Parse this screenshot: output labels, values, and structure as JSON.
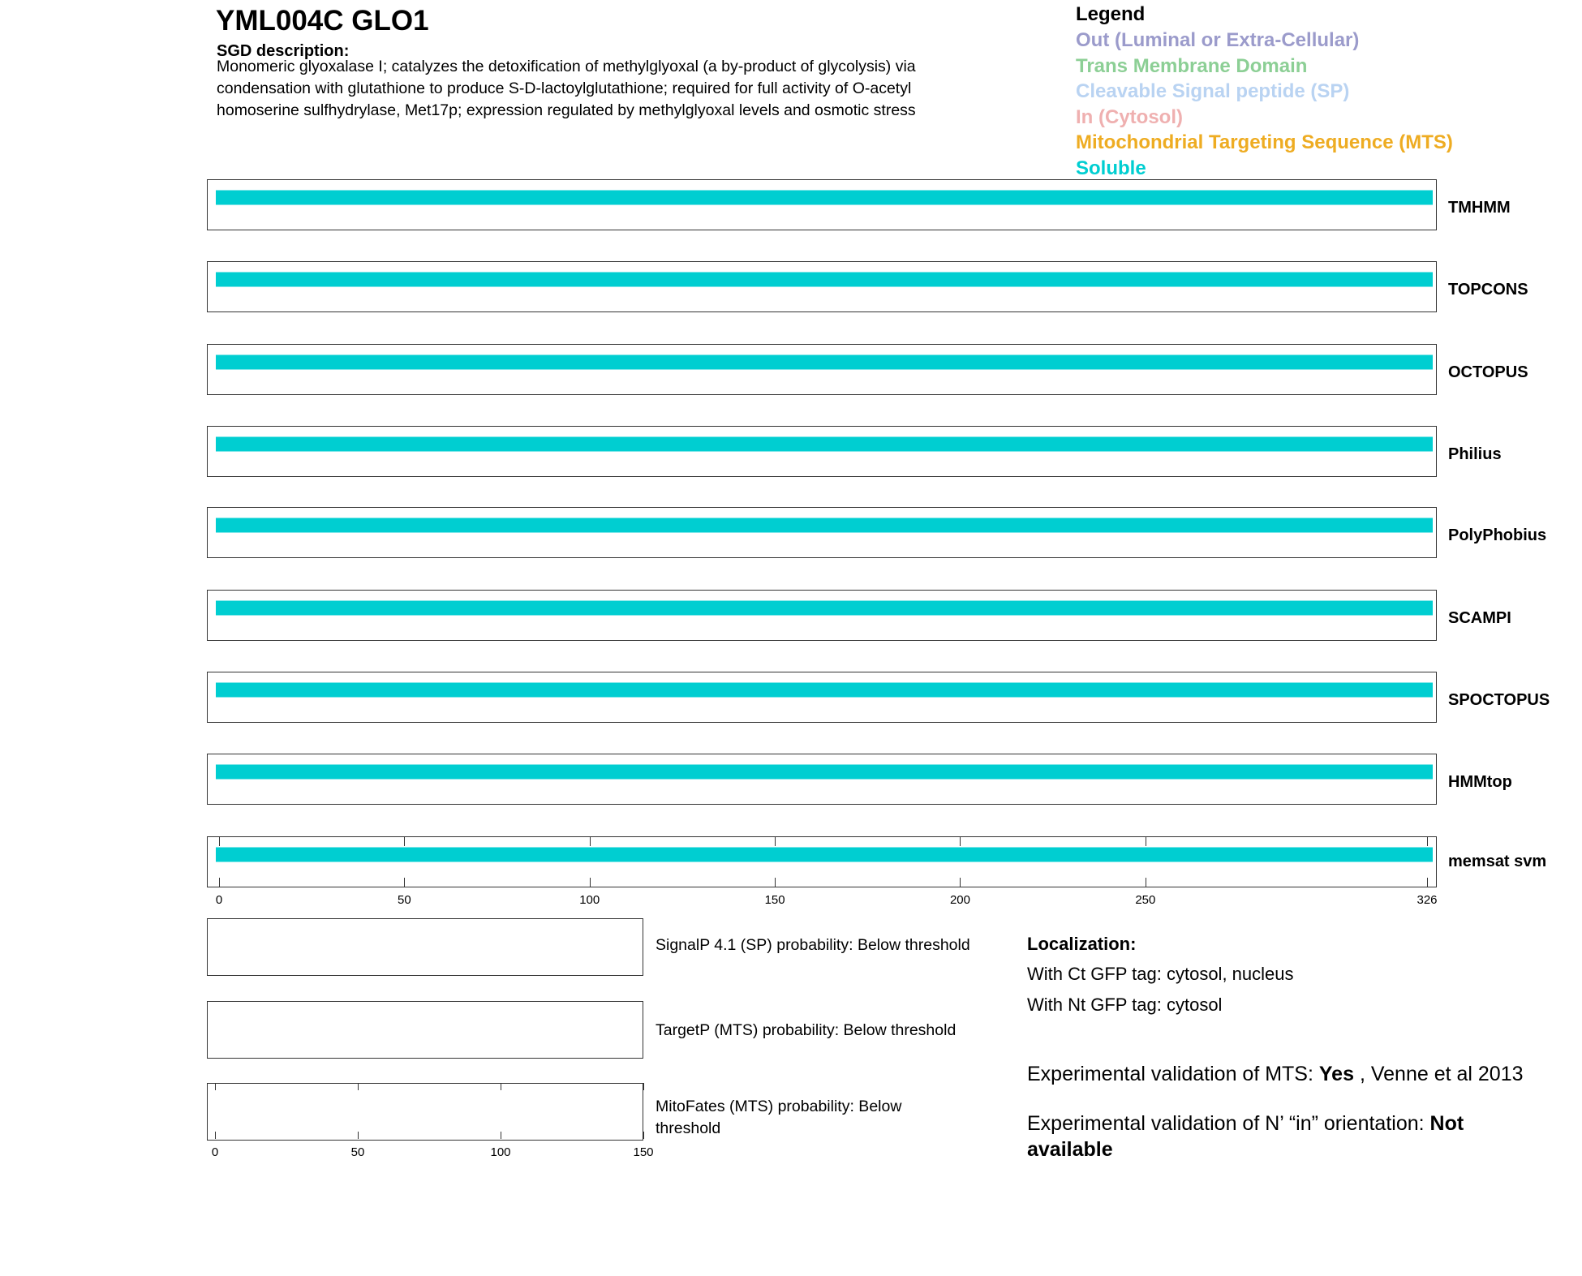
{
  "header": {
    "title": "YML004C  GLO1",
    "sgd_heading": "SGD description:",
    "description_lines": [
      "Monomeric glyoxalase I; catalyzes the detoxification of methylglyoxal (a by-product of glycolysis) via",
      "condensation with glutathione to produce S-D-lactoylglutathione; required for full activity of O-acetyl",
      "homoserine sulfhydrylase, Met17p; expression regulated by methylglyoxal levels and osmotic stress"
    ]
  },
  "legend": {
    "title": "Legend",
    "items": [
      {
        "label": "Out (Luminal or Extra-Cellular)",
        "color": "#9B9BCB"
      },
      {
        "label": "Trans Membrane Domain",
        "color": "#8CCF95"
      },
      {
        "label": "Cleavable Signal peptide (SP)",
        "color": "#B9D3F2"
      },
      {
        "label": "In (Cytosol)",
        "color": "#EFB0B0"
      },
      {
        "label": "Mitochondrial Targeting Sequence (MTS)",
        "color": "#EEAC22"
      },
      {
        "label": "Soluble",
        "color": "#00CED1"
      }
    ]
  },
  "chart_data": {
    "type": "track",
    "sequence_length": 326,
    "x_ticks": [
      0,
      50,
      100,
      150,
      200,
      250,
      326
    ],
    "tracks": [
      {
        "name": "TMHMM",
        "segments": [
          {
            "start": 1,
            "end": 326,
            "type": "Soluble"
          }
        ]
      },
      {
        "name": "TOPCONS",
        "segments": [
          {
            "start": 1,
            "end": 326,
            "type": "Soluble"
          }
        ]
      },
      {
        "name": "OCTOPUS",
        "segments": [
          {
            "start": 1,
            "end": 326,
            "type": "Soluble"
          }
        ]
      },
      {
        "name": "Philius",
        "segments": [
          {
            "start": 1,
            "end": 326,
            "type": "Soluble"
          }
        ]
      },
      {
        "name": "PolyPhobius",
        "segments": [
          {
            "start": 1,
            "end": 326,
            "type": "Soluble"
          }
        ]
      },
      {
        "name": "SCAMPI",
        "segments": [
          {
            "start": 1,
            "end": 326,
            "type": "Soluble"
          }
        ]
      },
      {
        "name": "SPOCTOPUS",
        "segments": [
          {
            "start": 1,
            "end": 326,
            "type": "Soluble"
          }
        ]
      },
      {
        "name": "HMMtop",
        "segments": [
          {
            "start": 1,
            "end": 326,
            "type": "Soluble"
          }
        ]
      },
      {
        "name": "memsat svm",
        "segments": [
          {
            "start": 1,
            "end": 326,
            "type": "Soluble"
          }
        ]
      }
    ],
    "small_axis_ticks": [
      0,
      50,
      100,
      150
    ]
  },
  "predictions": [
    "SignalP 4.1 (SP) probability: Below threshold",
    "TargetP (MTS) probability: Below threshold",
    "MitoFates (MTS) probability: Below threshold"
  ],
  "localization": {
    "heading": "Localization:",
    "ct": "With Ct GFP tag: cytosol, nucleus",
    "nt": "With Nt GFP tag: cytosol",
    "mts_prefix": "Experimental validation of MTS: ",
    "mts_value": "Yes",
    "mts_suffix": " , Venne et al 2013",
    "nin_prefix": "Experimental validation of N’ “in” orientation: ",
    "nin_value": "Not available"
  }
}
